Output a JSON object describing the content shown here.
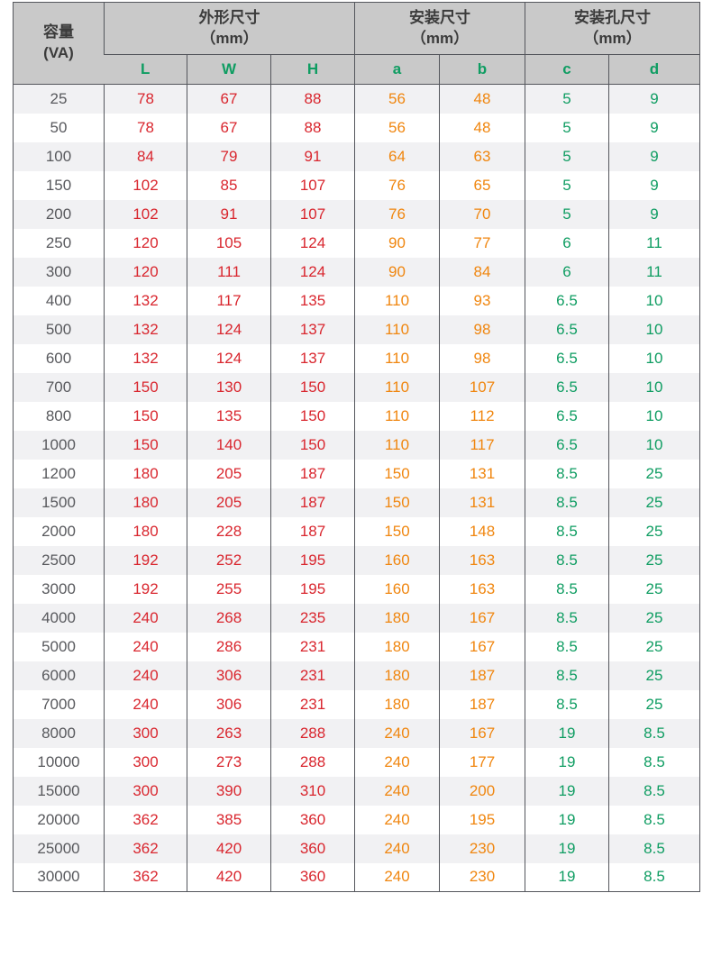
{
  "chart_data": {
    "type": "table",
    "title": "",
    "column_groups": [
      {
        "label": "容量\n(VA)",
        "span": 1
      },
      {
        "label": "外形尺寸\n（mm）",
        "span": 3
      },
      {
        "label": "安装尺寸\n（mm）",
        "span": 2
      },
      {
        "label": "安装孔尺寸\n（mm）",
        "span": 2
      }
    ],
    "sub_headers": [
      "L",
      "W",
      "H",
      "a",
      "b",
      "c",
      "d"
    ],
    "rows": [
      [
        "25",
        "78",
        "67",
        "88",
        "56",
        "48",
        "5",
        "9"
      ],
      [
        "50",
        "78",
        "67",
        "88",
        "56",
        "48",
        "5",
        "9"
      ],
      [
        "100",
        "84",
        "79",
        "91",
        "64",
        "63",
        "5",
        "9"
      ],
      [
        "150",
        "102",
        "85",
        "107",
        "76",
        "65",
        "5",
        "9"
      ],
      [
        "200",
        "102",
        "91",
        "107",
        "76",
        "70",
        "5",
        "9"
      ],
      [
        "250",
        "120",
        "105",
        "124",
        "90",
        "77",
        "6",
        "11"
      ],
      [
        "300",
        "120",
        "111",
        "124",
        "90",
        "84",
        "6",
        "11"
      ],
      [
        "400",
        "132",
        "117",
        "135",
        "110",
        "93",
        "6.5",
        "10"
      ],
      [
        "500",
        "132",
        "124",
        "137",
        "110",
        "98",
        "6.5",
        "10"
      ],
      [
        "600",
        "132",
        "124",
        "137",
        "110",
        "98",
        "6.5",
        "10"
      ],
      [
        "700",
        "150",
        "130",
        "150",
        "110",
        "107",
        "6.5",
        "10"
      ],
      [
        "800",
        "150",
        "135",
        "150",
        "110",
        "112",
        "6.5",
        "10"
      ],
      [
        "1000",
        "150",
        "140",
        "150",
        "110",
        "117",
        "6.5",
        "10"
      ],
      [
        "1200",
        "180",
        "205",
        "187",
        "150",
        "131",
        "8.5",
        "25"
      ],
      [
        "1500",
        "180",
        "205",
        "187",
        "150",
        "131",
        "8.5",
        "25"
      ],
      [
        "2000",
        "180",
        "228",
        "187",
        "150",
        "148",
        "8.5",
        "25"
      ],
      [
        "2500",
        "192",
        "252",
        "195",
        "160",
        "163",
        "8.5",
        "25"
      ],
      [
        "3000",
        "192",
        "255",
        "195",
        "160",
        "163",
        "8.5",
        "25"
      ],
      [
        "4000",
        "240",
        "268",
        "235",
        "180",
        "167",
        "8.5",
        "25"
      ],
      [
        "5000",
        "240",
        "286",
        "231",
        "180",
        "167",
        "8.5",
        "25"
      ],
      [
        "6000",
        "240",
        "306",
        "231",
        "180",
        "187",
        "8.5",
        "25"
      ],
      [
        "7000",
        "240",
        "306",
        "231",
        "180",
        "187",
        "8.5",
        "25"
      ],
      [
        "8000",
        "300",
        "263",
        "288",
        "240",
        "167",
        "19",
        "8.5"
      ],
      [
        "10000",
        "300",
        "273",
        "288",
        "240",
        "177",
        "19",
        "8.5"
      ],
      [
        "15000",
        "300",
        "390",
        "310",
        "240",
        "200",
        "19",
        "8.5"
      ],
      [
        "20000",
        "362",
        "385",
        "360",
        "240",
        "195",
        "19",
        "8.5"
      ],
      [
        "25000",
        "362",
        "420",
        "360",
        "240",
        "230",
        "19",
        "8.5"
      ],
      [
        "30000",
        "362",
        "420",
        "360",
        "240",
        "230",
        "19",
        "8.5"
      ]
    ],
    "layout": {
      "grid": "vertical-borders-only",
      "alternating_rows": true
    }
  },
  "colors": {
    "header_bg": "#c9c9c9",
    "row_alt_bg": "#f1f1f3",
    "row_bg": "#ffffff",
    "border": "#54565c",
    "header_text": "#3b3b3b",
    "capacity_text": "#58595d",
    "dimension_text": "#d9262e",
    "mounting_text": "#f0860f",
    "hole_text": "#0f9d62"
  }
}
